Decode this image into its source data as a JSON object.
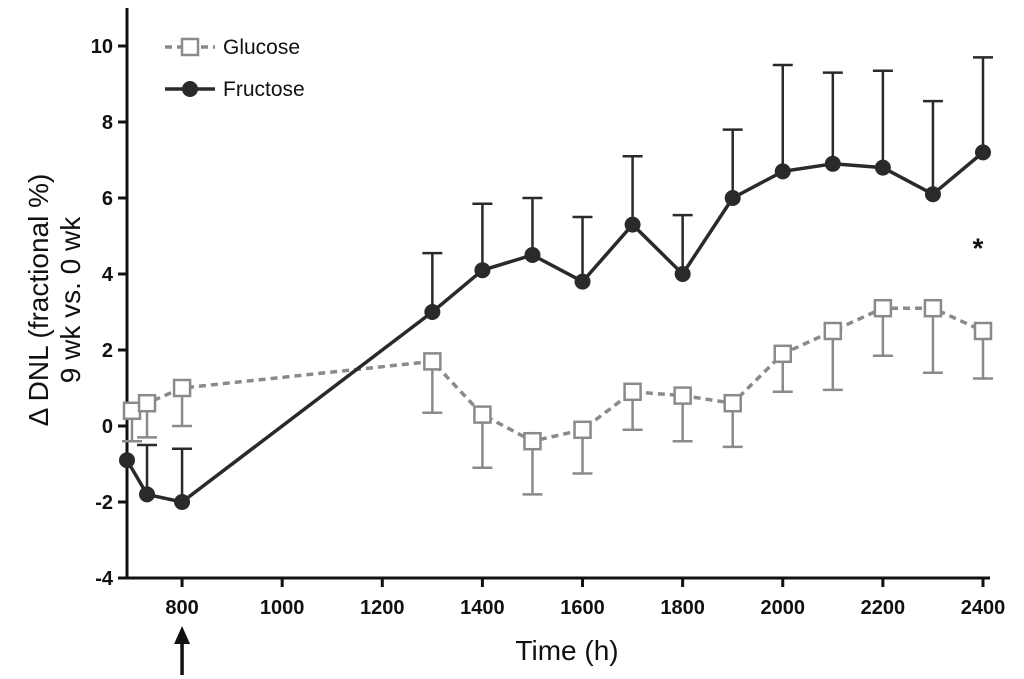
{
  "chart_data": {
    "type": "line",
    "xlabel": "Time (h)",
    "ylabel_line1": "Δ DNL (fractional %)",
    "ylabel_line2": "9 wk vs. 0 wk",
    "xlim": [
      690,
      2410
    ],
    "ylim": [
      -4,
      11
    ],
    "xticks": [
      800,
      1000,
      1200,
      1400,
      1600,
      1800,
      2000,
      2200,
      2400
    ],
    "yticks": [
      -4,
      -2,
      0,
      2,
      4,
      6,
      8,
      10
    ],
    "grid": false,
    "legend_position": "top-left",
    "annotation": "*",
    "annotation_at": {
      "x": 2390,
      "y": 4.7
    },
    "arrow_at_x": 800,
    "series": [
      {
        "name": "Glucose",
        "style": "dashed",
        "marker": "open-square",
        "color": "#8a8a8a",
        "error_direction": "down",
        "x": [
          700,
          730,
          800,
          1300,
          1400,
          1500,
          1600,
          1700,
          1800,
          1900,
          2000,
          2100,
          2200,
          2300,
          2400
        ],
        "y": [
          0.4,
          0.6,
          1.0,
          1.7,
          0.3,
          -0.4,
          -0.1,
          0.9,
          0.8,
          0.6,
          1.9,
          2.5,
          3.1,
          3.1,
          2.5
        ],
        "error": [
          0.8,
          0.9,
          1.0,
          1.35,
          1.4,
          1.4,
          1.15,
          1.0,
          1.2,
          1.15,
          1.0,
          1.55,
          1.25,
          1.7,
          1.25
        ]
      },
      {
        "name": "Fructose",
        "style": "solid",
        "marker": "filled-circle",
        "color": "#2a2a2a",
        "error_direction": "up",
        "x": [
          690,
          730,
          800,
          1300,
          1400,
          1500,
          1600,
          1700,
          1800,
          1900,
          2000,
          2100,
          2200,
          2300,
          2400
        ],
        "y": [
          -0.9,
          -1.8,
          -2.0,
          3.0,
          4.1,
          4.5,
          3.8,
          5.3,
          4.0,
          6.0,
          6.7,
          6.9,
          6.8,
          6.1,
          7.2
        ],
        "error": [
          0.0,
          1.3,
          1.4,
          1.55,
          1.75,
          1.5,
          1.7,
          1.8,
          1.55,
          1.8,
          2.8,
          2.4,
          2.55,
          2.45,
          2.5
        ]
      }
    ]
  }
}
